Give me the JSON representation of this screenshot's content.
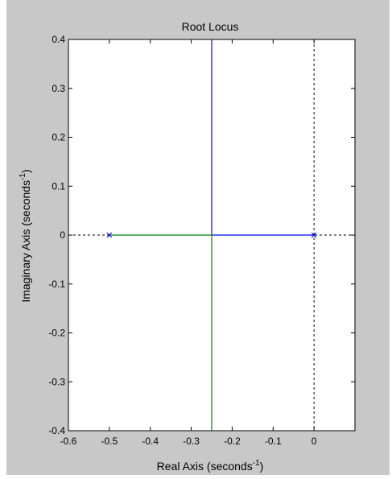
{
  "chart_data": {
    "type": "line",
    "title": "Root Locus",
    "xlabel_main": "Real Axis (seconds",
    "xlabel_sup": "-1",
    "xlabel_close": ")",
    "ylabel_main": "Imaginary Axis (seconds",
    "ylabel_sup": "-1",
    "ylabel_close": ")",
    "xlim": [
      -0.6,
      0.1
    ],
    "ylim": [
      -0.4,
      0.4
    ],
    "xticks": [
      -0.6,
      -0.5,
      -0.4,
      -0.3,
      -0.2,
      -0.1,
      0
    ],
    "xtick_labels": [
      "-0.6",
      "-0.5",
      "-0.4",
      "-0.3",
      "-0.2",
      "-0.1",
      "0"
    ],
    "yticks": [
      0.4,
      0.3,
      0.2,
      0.1,
      0,
      -0.1,
      -0.2,
      -0.3,
      -0.4
    ],
    "ytick_labels": [
      "0.4",
      "0.3",
      "0.2",
      "0.1",
      "0",
      "-0.1",
      "-0.2",
      "-0.3",
      "-0.4"
    ],
    "grid": false,
    "series": [
      {
        "color": "#0000ff",
        "x": [
          0,
          -0.25,
          -0.25
        ],
        "y": [
          0,
          0,
          0.4
        ]
      },
      {
        "color": "#008000",
        "x": [
          -0.5,
          -0.25,
          -0.25
        ],
        "y": [
          0,
          0,
          -0.4
        ]
      }
    ],
    "poles": [
      {
        "x": -0.5,
        "y": 0,
        "marker": "x",
        "color": "#0000ff"
      },
      {
        "x": 0,
        "y": 0,
        "marker": "x",
        "color": "#0000ff"
      }
    ],
    "reference_lines": [
      {
        "axis": "x",
        "value": 0,
        "style": "dashed",
        "color": "#000000"
      },
      {
        "axis": "y",
        "value": 0,
        "style": "dashed",
        "color": "#000000"
      }
    ]
  }
}
